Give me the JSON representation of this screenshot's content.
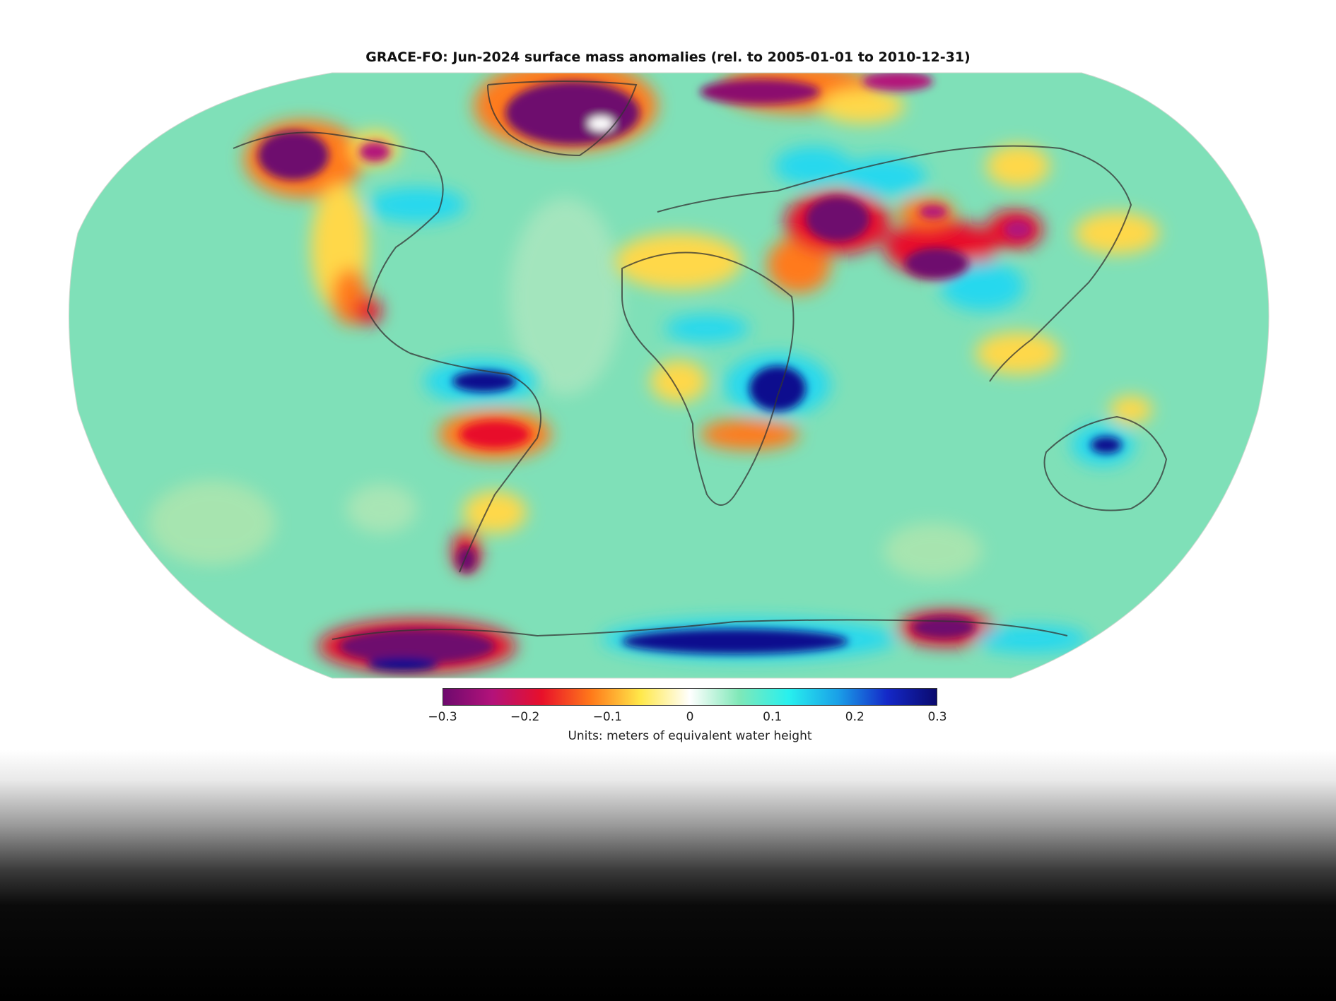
{
  "title": "GRACE-FO: Jun-2024 surface mass anomalies (rel. to 2005-01-01 to 2010-12-31)",
  "colorbar": {
    "ticks": [
      "−0.3",
      "−0.2",
      "−0.1",
      "0",
      "0.1",
      "0.2",
      "0.3"
    ],
    "units": "Units: meters of equivalent water height",
    "colors": [
      "#6e0a6e",
      "#b3127a",
      "#e8102a",
      "#ff7a1a",
      "#ffe84a",
      "#ffffff",
      "#7fe8b8",
      "#28f0ee",
      "#1aa0e8",
      "#1428c8",
      "#0a0a6e"
    ]
  },
  "palette": {
    "ocean": "#7fe0b8",
    "coast": "#333333",
    "strong_loss": "#6e0a6e",
    "loss": "#e8102a",
    "mild_loss": "#ffd84a",
    "gain": "#28d8ee",
    "strong_gain": "#0a0a8e"
  }
}
